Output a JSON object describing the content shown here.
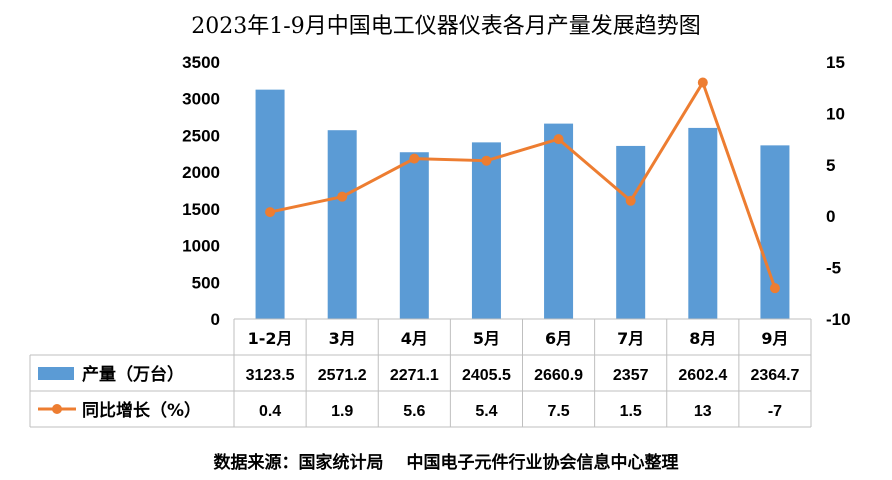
{
  "title": "2023年1-9月中国电工仪器仪表各月产量发展趋势图",
  "source": "数据来源：国家统计局　 中国电子元件行业协会信息中心整理",
  "colors": {
    "bar": "#5B9BD5",
    "line": "#ED7D31"
  },
  "chart_data": {
    "type": "bar",
    "categories": [
      "1-2月",
      "3月",
      "4月",
      "5月",
      "6月",
      "7月",
      "8月",
      "9月"
    ],
    "series": [
      {
        "name": "产量（万台）",
        "type": "bar",
        "axis": "left",
        "values": [
          3123.5,
          2571.2,
          2271.1,
          2405.5,
          2660.9,
          2357,
          2602.4,
          2364.7
        ],
        "labels": [
          "3123.5",
          "2571.2",
          "2271.1",
          "2405.5",
          "2660.9",
          "2357",
          "2602.4",
          "2364.7"
        ]
      },
      {
        "name": "同比增长（%）",
        "type": "line",
        "axis": "right",
        "values": [
          0.4,
          1.9,
          5.6,
          5.4,
          7.5,
          1.5,
          13,
          -7
        ],
        "labels": [
          "0.4",
          "1.9",
          "5.6",
          "5.4",
          "7.5",
          "1.5",
          "13",
          "-7"
        ]
      }
    ],
    "y_left": {
      "min": 0,
      "max": 3500,
      "ticks": [
        "0",
        "500",
        "1000",
        "1500",
        "2000",
        "2500",
        "3000",
        "3500"
      ]
    },
    "y_right": {
      "min": -10,
      "max": 15,
      "ticks": [
        "-10",
        "-5",
        "0",
        "5",
        "10",
        "15"
      ]
    },
    "grid": false,
    "legend": "data-table"
  }
}
